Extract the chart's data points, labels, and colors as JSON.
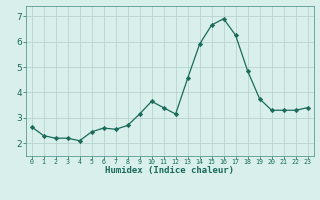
{
  "x": [
    0,
    1,
    2,
    3,
    4,
    5,
    6,
    7,
    8,
    9,
    10,
    11,
    12,
    13,
    14,
    15,
    16,
    17,
    18,
    19,
    20,
    21,
    22,
    23
  ],
  "y": [
    2.65,
    2.3,
    2.2,
    2.2,
    2.1,
    2.45,
    2.6,
    2.55,
    2.7,
    3.15,
    3.65,
    3.4,
    3.15,
    4.55,
    5.9,
    6.65,
    6.9,
    6.25,
    4.85,
    3.75,
    3.3,
    3.3,
    3.3,
    3.4
  ],
  "xlabel": "Humidex (Indice chaleur)",
  "ylim": [
    1.5,
    7.4
  ],
  "xlim": [
    -0.5,
    23.5
  ],
  "yticks": [
    2,
    3,
    4,
    5,
    6,
    7
  ],
  "xticks": [
    0,
    1,
    2,
    3,
    4,
    5,
    6,
    7,
    8,
    9,
    10,
    11,
    12,
    13,
    14,
    15,
    16,
    17,
    18,
    19,
    20,
    21,
    22,
    23
  ],
  "line_color": "#1a6b5a",
  "marker_color": "#1a6b5a",
  "plot_bg_color": "#d9efec",
  "fig_bg_color": "#d9efec",
  "xlabel_bg": "#b0c8c8",
  "grid_color": "#b8d4d0",
  "tick_label_color": "#1a6b5a",
  "xlabel_color": "#1a6b5a",
  "spine_color": "#5a9a90"
}
